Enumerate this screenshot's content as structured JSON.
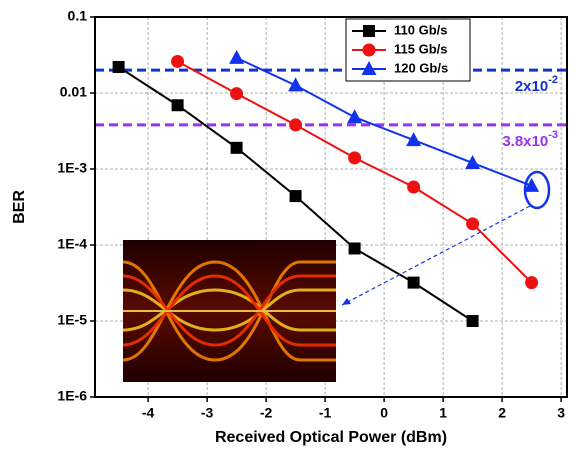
{
  "chart_data": {
    "type": "line",
    "xlabel": "Received Optical Power (dBm)",
    "ylabel": "BER",
    "xlim": [
      -4.9,
      3.1
    ],
    "xticks": [
      -4,
      -3,
      -2,
      -1,
      0,
      1,
      2,
      3
    ],
    "ylim": [
      1e-06,
      0.1
    ],
    "log_y": true,
    "grid": true,
    "yticks": [
      {
        "value": 1e-06,
        "label": "1E-6"
      },
      {
        "value": 1e-05,
        "label": "1E-5"
      },
      {
        "value": 0.0001,
        "label": "1E-4"
      },
      {
        "value": 0.001,
        "label": "1E-3"
      },
      0.01,
      0.1
    ],
    "legend": "top-right",
    "series": [
      {
        "name": "110 Gb/s",
        "color": "#000000",
        "marker": "square",
        "x": [
          -4.5,
          -3.5,
          -2.5,
          -1.5,
          -0.5,
          0.5,
          1.5
        ],
        "values": [
          0.022,
          0.0069,
          0.0019,
          0.00044,
          9e-05,
          3.2e-05,
          1e-05
        ]
      },
      {
        "name": "115 Gb/s",
        "color": "#ee1111",
        "marker": "circle",
        "x": [
          -3.5,
          -2.5,
          -1.5,
          -0.5,
          0.5,
          1.5,
          2.5
        ],
        "values": [
          0.026,
          0.0098,
          0.0038,
          0.0014,
          0.00058,
          0.00019,
          3.2e-05
        ]
      },
      {
        "name": "120 Gb/s",
        "color": "#1133ee",
        "marker": "triangle",
        "x": [
          -2.5,
          -1.5,
          -0.5,
          0.5,
          1.5,
          2.5
        ],
        "values": [
          0.029,
          0.0126,
          0.0048,
          0.0024,
          0.0012,
          0.0006
        ]
      }
    ],
    "thresholds": [
      {
        "value": 0.02,
        "color": "#1133cc",
        "text": "2x10",
        "sup": "-2"
      },
      {
        "value": 0.0038,
        "color": "#9933ee",
        "text": "3.8x10",
        "sup": "-3"
      }
    ]
  }
}
